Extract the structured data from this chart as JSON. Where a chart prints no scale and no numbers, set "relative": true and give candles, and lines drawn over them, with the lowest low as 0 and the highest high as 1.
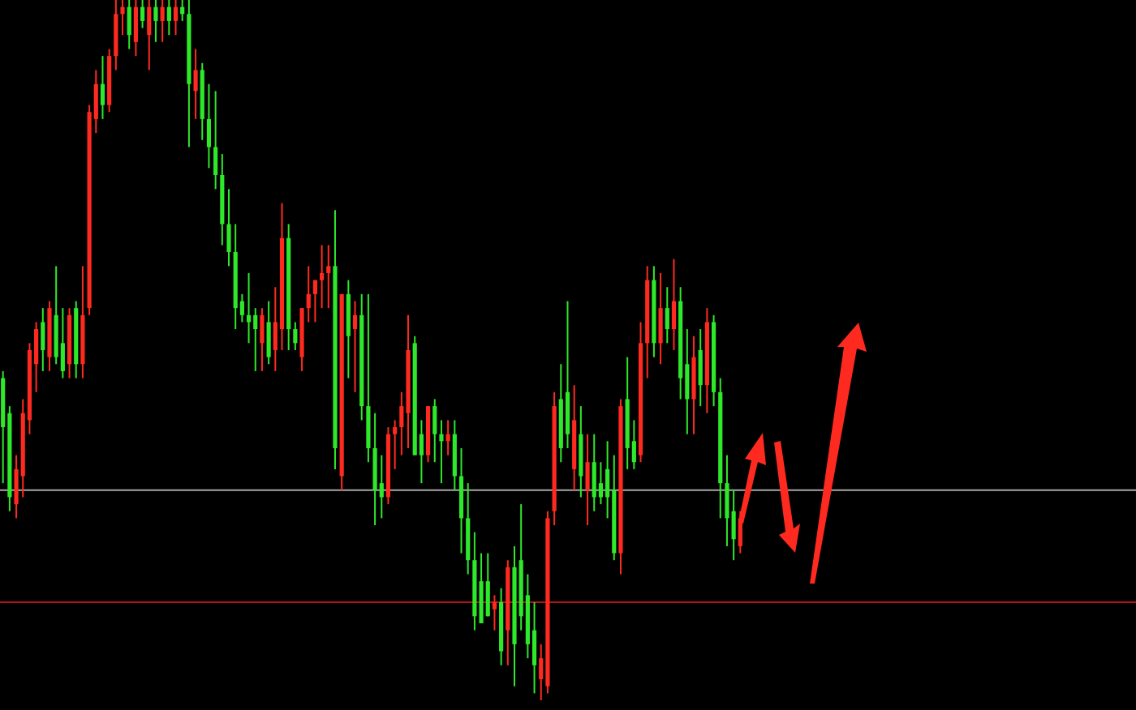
{
  "chart_data": {
    "type": "candlestick",
    "relative": true,
    "categories": [
      null,
      null,
      null,
      null,
      null,
      null,
      null,
      null,
      null,
      null,
      null,
      null,
      null,
      null,
      null,
      null,
      null,
      null,
      null,
      null,
      null,
      null,
      null,
      null,
      null,
      null,
      null,
      null,
      null,
      null,
      null,
      null,
      null,
      null,
      null,
      null,
      null,
      null,
      null,
      null,
      null,
      null,
      null,
      null,
      null,
      null,
      null,
      null,
      null,
      null,
      null,
      null,
      null,
      null,
      null,
      null,
      null,
      null,
      null,
      null,
      null,
      null,
      null,
      null,
      null,
      null,
      null,
      null,
      null,
      null,
      null,
      null,
      null,
      null,
      null,
      null,
      null,
      null,
      null,
      null,
      null,
      null,
      null,
      null,
      null,
      null,
      null,
      null,
      null,
      null,
      null,
      null,
      null,
      null,
      null,
      null,
      null,
      null,
      null,
      null,
      null,
      null,
      null,
      null,
      null,
      null,
      null,
      null,
      null,
      null,
      null,
      null
    ],
    "ohlc": [
      [
        0.46,
        0.47,
        0.31,
        0.39
      ],
      [
        0.41,
        0.42,
        0.27,
        0.29
      ],
      [
        0.28,
        0.35,
        0.26,
        0.33
      ],
      [
        0.32,
        0.43,
        0.29,
        0.41
      ],
      [
        0.4,
        0.51,
        0.38,
        0.5
      ],
      [
        0.48,
        0.54,
        0.44,
        0.53
      ],
      [
        0.54,
        0.56,
        0.47,
        0.5
      ],
      [
        0.49,
        0.57,
        0.47,
        0.56
      ],
      [
        0.55,
        0.62,
        0.48,
        0.49
      ],
      [
        0.51,
        0.56,
        0.46,
        0.47
      ],
      [
        0.48,
        0.56,
        0.46,
        0.55
      ],
      [
        0.56,
        0.57,
        0.46,
        0.48
      ],
      [
        0.48,
        0.62,
        0.46,
        0.55
      ],
      [
        0.56,
        0.85,
        0.55,
        0.84
      ],
      [
        0.83,
        0.9,
        0.81,
        0.88
      ],
      [
        0.88,
        0.92,
        0.83,
        0.85
      ],
      [
        0.85,
        0.93,
        0.84,
        0.92
      ],
      [
        0.92,
        1,
        0.9,
        0.98
      ],
      [
        0.98,
        1,
        0.95,
        0.99
      ],
      [
        0.99,
        1,
        0.93,
        0.95
      ],
      [
        0.94,
        1,
        0.92,
        0.99
      ],
      [
        0.99,
        1,
        0.96,
        0.97
      ],
      [
        0.95,
        1,
        0.9,
        0.99
      ],
      [
        0.99,
        1,
        0.94,
        0.97
      ],
      [
        0.97,
        1,
        0.94,
        0.99
      ],
      [
        0.99,
        1,
        0.95,
        0.97
      ],
      [
        0.97,
        1,
        0.95,
        0.99
      ],
      [
        0.99,
        1,
        0.97,
        0.98
      ],
      [
        0.98,
        1,
        0.79,
        0.88
      ],
      [
        0.87,
        0.93,
        0.83,
        0.9
      ],
      [
        0.9,
        0.91,
        0.8,
        0.83
      ],
      [
        0.83,
        0.88,
        0.76,
        0.79
      ],
      [
        0.79,
        0.87,
        0.73,
        0.75
      ],
      [
        0.75,
        0.78,
        0.65,
        0.68
      ],
      [
        0.68,
        0.73,
        0.62,
        0.64
      ],
      [
        0.64,
        0.68,
        0.53,
        0.56
      ],
      [
        0.57,
        0.58,
        0.54,
        0.55
      ],
      [
        0.55,
        0.61,
        0.51,
        0.54
      ],
      [
        0.55,
        0.56,
        0.47,
        0.53
      ],
      [
        0.51,
        0.56,
        0.47,
        0.55
      ],
      [
        0.54,
        0.57,
        0.48,
        0.49
      ],
      [
        0.5,
        0.59,
        0.47,
        0.54
      ],
      [
        0.53,
        0.71,
        0.5,
        0.66
      ],
      [
        0.66,
        0.68,
        0.5,
        0.53
      ],
      [
        0.53,
        0.54,
        0.5,
        0.51
      ],
      [
        0.49,
        0.56,
        0.47,
        0.56
      ],
      [
        0.56,
        0.62,
        0.54,
        0.58
      ],
      [
        0.58,
        0.6,
        0.54,
        0.6
      ],
      [
        0.6,
        0.65,
        0.56,
        0.61
      ],
      [
        0.61,
        0.65,
        0.56,
        0.62
      ],
      [
        0.62,
        0.7,
        0.33,
        0.36
      ],
      [
        0.32,
        0.58,
        0.3,
        0.58
      ],
      [
        0.58,
        0.6,
        0.46,
        0.52
      ],
      [
        0.53,
        0.57,
        0.44,
        0.55
      ],
      [
        0.55,
        0.58,
        0.4,
        0.42
      ],
      [
        0.42,
        0.58,
        0.34,
        0.36
      ],
      [
        0.36,
        0.41,
        0.25,
        0.3
      ],
      [
        0.31,
        0.35,
        0.26,
        0.29
      ],
      [
        0.29,
        0.39,
        0.28,
        0.38
      ],
      [
        0.38,
        0.4,
        0.33,
        0.39
      ],
      [
        0.39,
        0.44,
        0.35,
        0.42
      ],
      [
        0.41,
        0.55,
        0.36,
        0.5
      ],
      [
        0.51,
        0.52,
        0.35,
        0.35
      ],
      [
        0.38,
        0.4,
        0.31,
        0.35
      ],
      [
        0.35,
        0.42,
        0.34,
        0.42
      ],
      [
        0.42,
        0.43,
        0.34,
        0.38
      ],
      [
        0.38,
        0.4,
        0.31,
        0.37
      ],
      [
        0.37,
        0.4,
        0.35,
        0.38
      ],
      [
        0.38,
        0.4,
        0.3,
        0.32
      ],
      [
        0.32,
        0.36,
        0.21,
        0.26
      ],
      [
        0.26,
        0.31,
        0.18,
        0.2
      ],
      [
        0.2,
        0.24,
        0.1,
        0.12
      ],
      [
        0.17,
        0.21,
        0.11,
        0.11
      ],
      [
        0.17,
        0.21,
        0.12,
        0.12
      ],
      [
        0.13,
        0.15,
        0.1,
        0.14
      ],
      [
        0.14,
        0.16,
        0.05,
        0.07
      ],
      [
        0.1,
        0.2,
        0.05,
        0.19
      ],
      [
        0.19,
        0.22,
        0.02,
        0.08
      ],
      [
        0.2,
        0.28,
        0.1,
        0.12
      ],
      [
        0.15,
        0.18,
        0.06,
        0.08
      ],
      [
        0.1,
        0.14,
        0.01,
        0.05
      ],
      [
        0.03,
        0.08,
        0,
        0.06
      ],
      [
        0.02,
        0.27,
        0.01,
        0.26
      ],
      [
        0.27,
        0.44,
        0.25,
        0.42
      ],
      [
        0.43,
        0.48,
        0.34,
        0.36
      ],
      [
        0.44,
        0.57,
        0.36,
        0.38
      ],
      [
        0.33,
        0.45,
        0.3,
        0.4
      ],
      [
        0.38,
        0.42,
        0.29,
        0.32
      ],
      [
        0.3,
        0.38,
        0.25,
        0.34
      ],
      [
        0.34,
        0.38,
        0.27,
        0.29
      ],
      [
        0.31,
        0.34,
        0.28,
        0.29
      ],
      [
        0.33,
        0.37,
        0.26,
        0.29
      ],
      [
        0.3,
        0.35,
        0.2,
        0.21
      ],
      [
        0.21,
        0.43,
        0.18,
        0.42
      ],
      [
        0.43,
        0.49,
        0.33,
        0.36
      ],
      [
        0.37,
        0.4,
        0.33,
        0.34
      ],
      [
        0.35,
        0.54,
        0.34,
        0.51
      ],
      [
        0.51,
        0.62,
        0.46,
        0.6
      ],
      [
        0.6,
        0.62,
        0.49,
        0.51
      ],
      [
        0.51,
        0.61,
        0.48,
        0.56
      ],
      [
        0.56,
        0.59,
        0.51,
        0.53
      ],
      [
        0.53,
        0.63,
        0.5,
        0.57
      ],
      [
        0.57,
        0.59,
        0.43,
        0.46
      ],
      [
        0.48,
        0.53,
        0.38,
        0.43
      ],
      [
        0.43,
        0.52,
        0.38,
        0.49
      ],
      [
        0.5,
        0.53,
        0.42,
        0.45
      ],
      [
        0.45,
        0.56,
        0.41,
        0.54
      ],
      [
        0.54,
        0.55,
        0.42,
        0.44
      ],
      [
        0.44,
        0.46,
        0.26,
        0.31
      ],
      [
        0.31,
        0.35,
        0.22,
        0.26
      ],
      [
        0.27,
        0.3,
        0.2,
        0.23
      ],
      [
        0.22,
        0.27,
        0.21,
        0.26
      ]
    ],
    "colors": [
      "#2ee82a",
      "#2ee82a",
      "#ff2a1f",
      "#ff2a1f",
      "#ff2a1f",
      "#ff2a1f",
      "#2ee82a",
      "#ff2a1f",
      "#2ee82a",
      "#2ee82a",
      "#ff2a1f",
      "#2ee82a",
      "#ff2a1f",
      "#ff2a1f",
      "#ff2a1f",
      "#2ee82a",
      "#ff2a1f",
      "#ff2a1f",
      "#ff2a1f",
      "#2ee82a",
      "#ff2a1f",
      "#2ee82a",
      "#ff2a1f",
      "#2ee82a",
      "#ff2a1f",
      "#2ee82a",
      "#ff2a1f",
      "#2ee82a",
      "#2ee82a",
      "#ff2a1f",
      "#2ee82a",
      "#2ee82a",
      "#2ee82a",
      "#2ee82a",
      "#2ee82a",
      "#2ee82a",
      "#2ee82a",
      "#2ee82a",
      "#2ee82a",
      "#ff2a1f",
      "#2ee82a",
      "#ff2a1f",
      "#ff2a1f",
      "#2ee82a",
      "#2ee82a",
      "#ff2a1f",
      "#ff2a1f",
      "#ff2a1f",
      "#ff2a1f",
      "#ff2a1f",
      "#2ee82a",
      "#ff2a1f",
      "#2ee82a",
      "#ff2a1f",
      "#2ee82a",
      "#2ee82a",
      "#2ee82a",
      "#2ee82a",
      "#ff2a1f",
      "#ff2a1f",
      "#ff2a1f",
      "#ff2a1f",
      "#2ee82a",
      "#2ee82a",
      "#ff2a1f",
      "#2ee82a",
      "#2ee82a",
      "#ff2a1f",
      "#2ee82a",
      "#2ee82a",
      "#2ee82a",
      "#2ee82a",
      "#2ee82a",
      "#2ee82a",
      "#ff2a1f",
      "#2ee82a",
      "#ff2a1f",
      "#2ee82a",
      "#2ee82a",
      "#2ee82a",
      "#2ee82a",
      "#ff2a1f",
      "#ff2a1f",
      "#ff2a1f",
      "#2ee82a",
      "#2ee82a",
      "#ff2a1f",
      "#2ee82a",
      "#ff2a1f",
      "#2ee82a",
      "#2ee82a",
      "#2ee82a",
      "#2ee82a",
      "#ff2a1f",
      "#2ee82a",
      "#2ee82a",
      "#ff2a1f",
      "#ff2a1f",
      "#2ee82a",
      "#ff2a1f",
      "#2ee82a",
      "#ff2a1f",
      "#2ee82a",
      "#2ee82a",
      "#ff2a1f",
      "#2ee82a",
      "#ff2a1f",
      "#2ee82a",
      "#2ee82a",
      "#2ee82a",
      "#2ee82a",
      "#ff2a1f"
    ],
    "ref_lines": [
      {
        "axis": "y",
        "value": 0.3,
        "color": "#a8a8a8"
      },
      {
        "axis": "y",
        "value": 0.14,
        "color": "#b01414"
      }
    ]
  }
}
